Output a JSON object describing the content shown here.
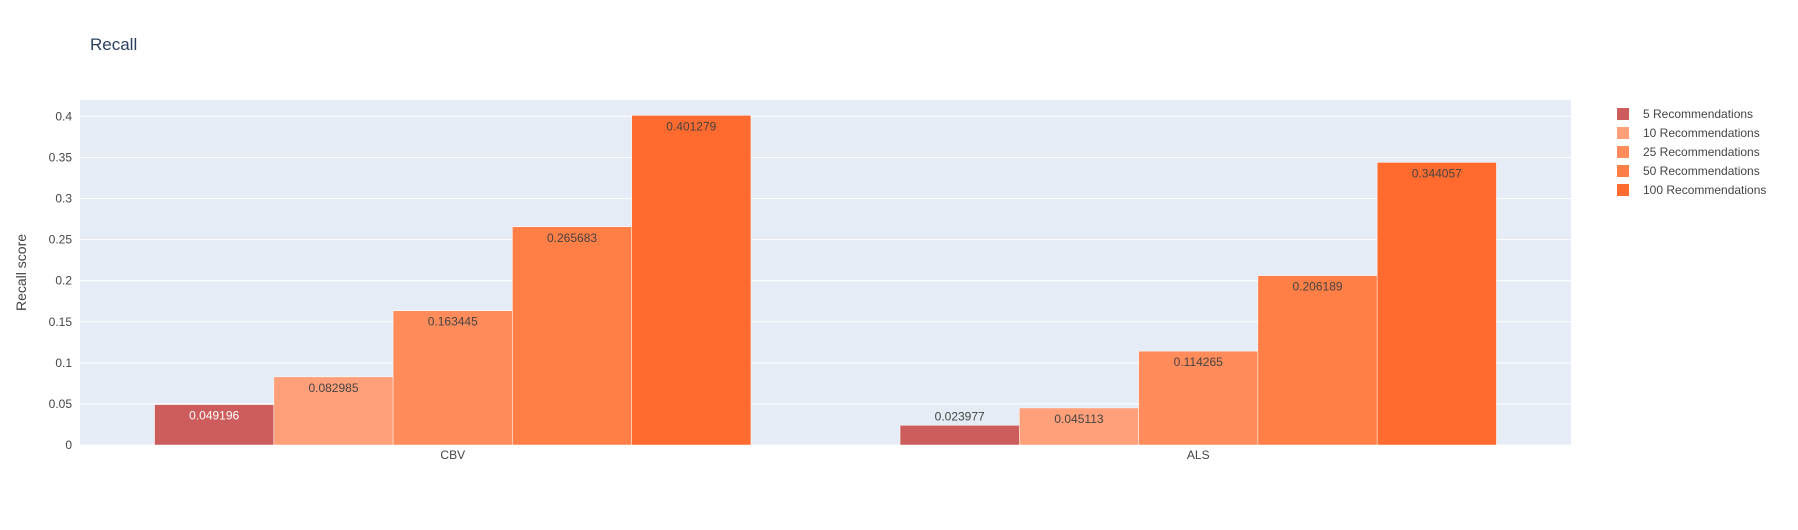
{
  "chart_data": {
    "type": "bar",
    "title": "Recall",
    "xlabel": "",
    "ylabel": "Recall score",
    "categories": [
      "CBV",
      "ALS"
    ],
    "ylim": [
      0,
      0.42
    ],
    "yticks": [
      0,
      0.05,
      0.1,
      0.15,
      0.2,
      0.25,
      0.3,
      0.35,
      0.4
    ],
    "ytick_labels": [
      "0",
      "0.05",
      "0.1",
      "0.15",
      "0.2",
      "0.25",
      "0.3",
      "0.35",
      "0.4"
    ],
    "grid": true,
    "legend_position": "top-right",
    "series": [
      {
        "name": "5 Recommendations",
        "color": "#cd5c5c",
        "values": [
          0.049196,
          0.023977
        ],
        "labels": [
          "0.049196",
          "0.023977"
        ],
        "label_color": [
          "#ffffff",
          "#444444"
        ]
      },
      {
        "name": "10 Recommendations",
        "color": "#ffa07a",
        "values": [
          0.082985,
          0.045113
        ],
        "labels": [
          "0.082985",
          "0.045113"
        ],
        "label_color": [
          "#444444",
          "#444444"
        ]
      },
      {
        "name": "25 Recommendations",
        "color": "#ff8c5a",
        "values": [
          0.163445,
          0.114265
        ],
        "labels": [
          "0.163445",
          "0.114265"
        ],
        "label_color": [
          "#444444",
          "#444444"
        ]
      },
      {
        "name": "50 Recommendations",
        "color": "#ff7f47",
        "values": [
          0.265683,
          0.206189
        ],
        "labels": [
          "0.265683",
          "0.206189"
        ],
        "label_color": [
          "#444444",
          "#444444"
        ]
      },
      {
        "name": "100 Recommendations",
        "color": "#ff6a2e",
        "values": [
          0.401279,
          0.344057
        ],
        "labels": [
          "0.401279",
          "0.344057"
        ],
        "label_color": [
          "#444444",
          "#444444"
        ]
      }
    ],
    "colors": {
      "plot_bg": "#e5ecf6",
      "grid": "#ffffff",
      "text": "#444444",
      "title": "#2a3f5f"
    }
  }
}
